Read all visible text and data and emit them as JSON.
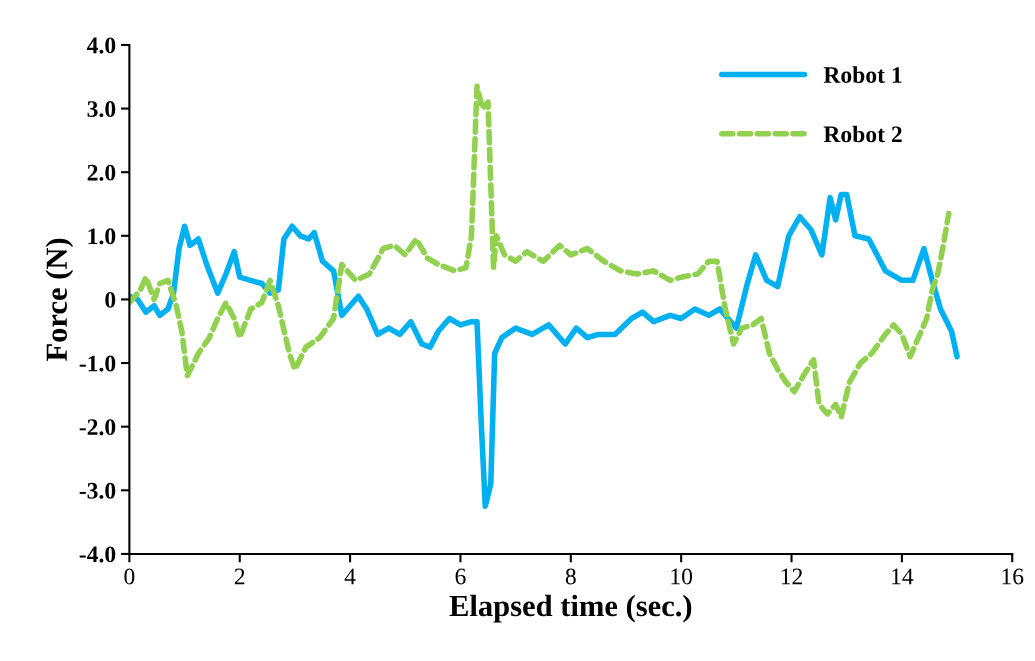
{
  "chart_data": {
    "type": "line",
    "xlabel": "Elapsed time (sec.)",
    "ylabel": "Force (N)",
    "xlim": [
      0,
      16
    ],
    "xticks": [
      0,
      2,
      4,
      6,
      8,
      10,
      12,
      14,
      16
    ],
    "ylim": [
      -4,
      4
    ],
    "yticks": [
      {
        "value": -4,
        "label": "-4.0"
      },
      {
        "value": -3,
        "label": "-3.0"
      },
      {
        "value": -2,
        "label": "-2.0"
      },
      {
        "value": -1,
        "label": "-1.0"
      },
      {
        "value": 0,
        "label": "0"
      },
      {
        "value": 1,
        "label": "1.0"
      },
      {
        "value": 2,
        "label": "2.0"
      },
      {
        "value": 3,
        "label": "3.0"
      },
      {
        "value": 4,
        "label": "4.0"
      }
    ],
    "grid": false,
    "legend": "top right",
    "marker": "none",
    "series": [
      {
        "name": "Robot 1",
        "color": "#00b0f0",
        "line_style": "solid",
        "x": [
          0,
          0.15,
          0.3,
          0.45,
          0.55,
          0.7,
          0.8,
          0.9,
          1.0,
          1.1,
          1.25,
          1.4,
          1.6,
          1.75,
          1.9,
          2.0,
          2.2,
          2.4,
          2.55,
          2.7,
          2.8,
          2.95,
          3.1,
          3.25,
          3.35,
          3.5,
          3.7,
          3.85,
          4.0,
          4.15,
          4.3,
          4.5,
          4.7,
          4.9,
          5.1,
          5.3,
          5.45,
          5.6,
          5.8,
          6.0,
          6.2,
          6.3,
          6.38,
          6.45,
          6.55,
          6.62,
          6.75,
          7.0,
          7.3,
          7.6,
          7.9,
          8.1,
          8.3,
          8.5,
          8.8,
          9.1,
          9.3,
          9.5,
          9.8,
          10.0,
          10.25,
          10.5,
          10.7,
          10.9,
          11.0,
          11.2,
          11.35,
          11.55,
          11.75,
          11.95,
          12.15,
          12.35,
          12.55,
          12.7,
          12.8,
          12.9,
          13.0,
          13.15,
          13.4,
          13.7,
          14.0,
          14.2,
          14.4,
          14.55,
          14.7,
          14.9,
          15.0
        ],
        "values": [
          0.05,
          0,
          -0.2,
          -0.1,
          -0.25,
          -0.15,
          0.1,
          0.8,
          1.15,
          0.85,
          0.95,
          0.55,
          0.1,
          0.4,
          0.75,
          0.35,
          0.3,
          0.25,
          0.1,
          0.15,
          0.95,
          1.15,
          1.0,
          0.95,
          1.05,
          0.6,
          0.45,
          -0.25,
          -0.1,
          0.05,
          -0.15,
          -0.55,
          -0.45,
          -0.55,
          -0.35,
          -0.7,
          -0.75,
          -0.5,
          -0.3,
          -0.4,
          -0.35,
          -0.35,
          -2.0,
          -3.25,
          -2.9,
          -0.85,
          -0.6,
          -0.45,
          -0.55,
          -0.4,
          -0.7,
          -0.45,
          -0.6,
          -0.55,
          -0.55,
          -0.3,
          -0.2,
          -0.35,
          -0.25,
          -0.3,
          -0.15,
          -0.25,
          -0.15,
          -0.35,
          -0.45,
          0.25,
          0.7,
          0.3,
          0.2,
          1.0,
          1.3,
          1.1,
          0.7,
          1.6,
          1.25,
          1.65,
          1.65,
          1.0,
          0.95,
          0.45,
          0.3,
          0.3,
          0.8,
          0.3,
          -0.15,
          -0.5,
          -0.9
        ]
      },
      {
        "name": "Robot 2",
        "color": "#92d050",
        "line_style": "dashed",
        "x": [
          0,
          0.2,
          0.3,
          0.45,
          0.55,
          0.7,
          0.85,
          0.95,
          1.05,
          1.25,
          1.45,
          1.6,
          1.75,
          1.9,
          2.0,
          2.2,
          2.4,
          2.55,
          2.7,
          2.9,
          3.0,
          3.2,
          3.45,
          3.7,
          3.85,
          4.1,
          4.35,
          4.6,
          4.8,
          5.0,
          5.2,
          5.4,
          5.6,
          5.9,
          6.1,
          6.2,
          6.3,
          6.4,
          6.5,
          6.55,
          6.6,
          6.65,
          6.8,
          7.0,
          7.2,
          7.5,
          7.8,
          8.0,
          8.3,
          8.6,
          8.9,
          9.2,
          9.5,
          9.8,
          10.0,
          10.3,
          10.5,
          10.65,
          10.8,
          10.95,
          11.1,
          11.3,
          11.45,
          11.6,
          11.75,
          11.9,
          12.05,
          12.25,
          12.4,
          12.5,
          12.65,
          12.8,
          12.9,
          13.05,
          13.25,
          13.45,
          13.7,
          13.85,
          14.0,
          14.15,
          14.3,
          14.45,
          14.55,
          14.65,
          14.75,
          14.85
        ],
        "values": [
          -0.05,
          0.15,
          0.35,
          0,
          0.25,
          0.3,
          -0.1,
          -0.5,
          -1.2,
          -0.85,
          -0.6,
          -0.3,
          -0.05,
          -0.3,
          -0.6,
          -0.15,
          -0.05,
          0.3,
          -0.1,
          -0.85,
          -1.1,
          -0.75,
          -0.6,
          -0.3,
          0.55,
          0.3,
          0.4,
          0.8,
          0.85,
          0.7,
          0.95,
          0.65,
          0.55,
          0.45,
          0.5,
          1.0,
          3.35,
          3.0,
          3.1,
          1.8,
          0.5,
          1.0,
          0.7,
          0.6,
          0.75,
          0.6,
          0.85,
          0.7,
          0.8,
          0.6,
          0.45,
          0.4,
          0.45,
          0.3,
          0.35,
          0.4,
          0.6,
          0.6,
          -0.15,
          -0.7,
          -0.45,
          -0.4,
          -0.3,
          -0.85,
          -1.1,
          -1.3,
          -1.45,
          -1.15,
          -0.95,
          -1.65,
          -1.8,
          -1.65,
          -1.85,
          -1.3,
          -1.0,
          -0.85,
          -0.55,
          -0.4,
          -0.55,
          -0.9,
          -0.6,
          -0.3,
          0.15,
          0.4,
          0.85,
          1.35
        ]
      }
    ]
  }
}
